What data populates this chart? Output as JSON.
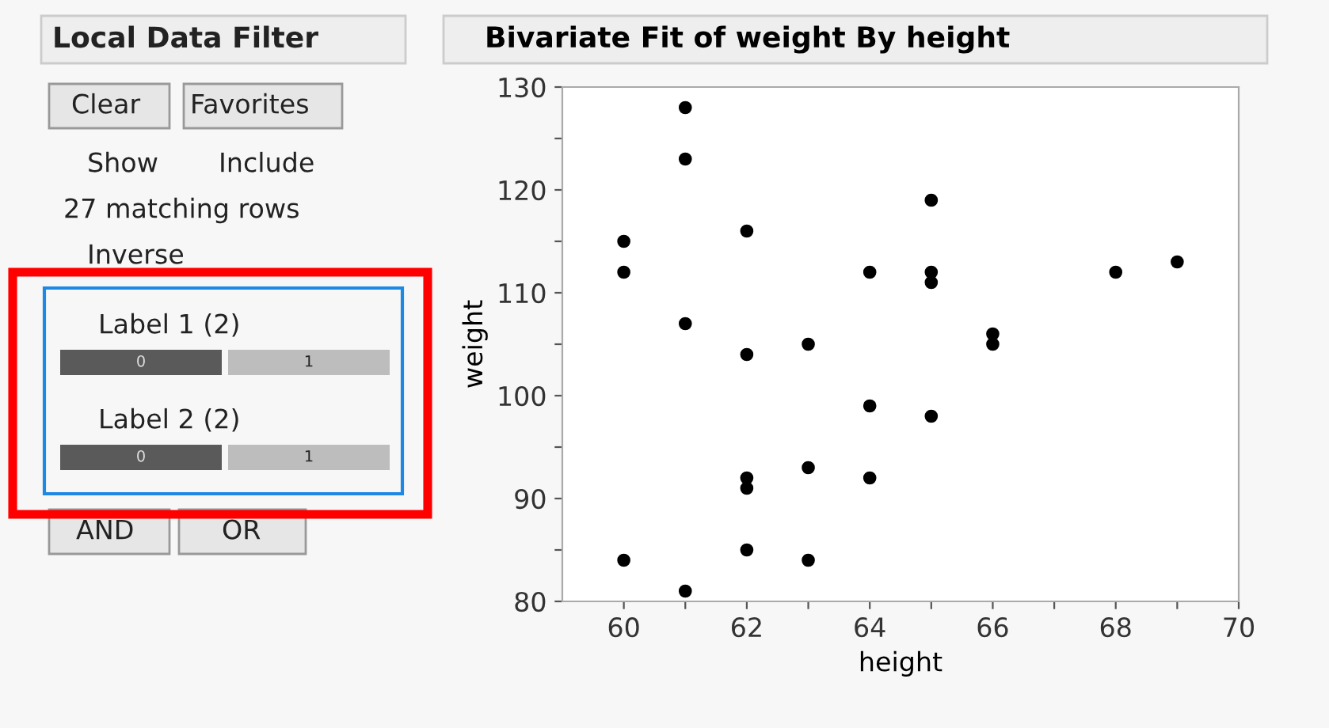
{
  "chart_data": {
    "type": "scatter",
    "title": "Bivariate Fit of weight By height",
    "xlabel": "height",
    "ylabel": "weight",
    "x": [
      60,
      60,
      60,
      61,
      61,
      61,
      61,
      62,
      62,
      62,
      62,
      62,
      63,
      63,
      63,
      64,
      64,
      64,
      65,
      65,
      65,
      65,
      66,
      66,
      68,
      69
    ],
    "series": [
      {
        "color": "#000000",
        "values": [
          115,
          112,
          84,
          128,
          123,
          107,
          81,
          116,
          104,
          92,
          91,
          85,
          105,
          93,
          84,
          112,
          99,
          92,
          119,
          112,
          111,
          98,
          106,
          105,
          112,
          113
        ]
      }
    ],
    "marker": "circle",
    "grid": false,
    "legend": false,
    "xlim": [
      59,
      70
    ],
    "xticks": [
      60,
      {
        "value": 61,
        "label": null
      },
      62,
      {
        "value": 63,
        "label": null
      },
      64,
      {
        "value": 65,
        "label": null
      },
      66,
      {
        "value": 67,
        "label": null
      },
      68,
      {
        "value": 69,
        "label": null
      },
      70
    ],
    "ylim": [
      80,
      130
    ],
    "yticks": [
      80,
      {
        "value": 85,
        "label": null
      },
      90,
      {
        "value": 95,
        "label": null
      },
      100,
      {
        "value": 105,
        "label": null
      },
      110,
      {
        "value": 115,
        "label": null
      },
      120,
      {
        "value": 125,
        "label": null
      },
      130
    ],
    "annotations": [
      "Local Data Filter",
      "Clear",
      "Favorites",
      "Show",
      "Include",
      "27 matching rows",
      "Inverse",
      "Label 1 (2)",
      "0",
      "1",
      "Label 2 (2)",
      "0",
      "1",
      "AND",
      "OR"
    ]
  }
}
